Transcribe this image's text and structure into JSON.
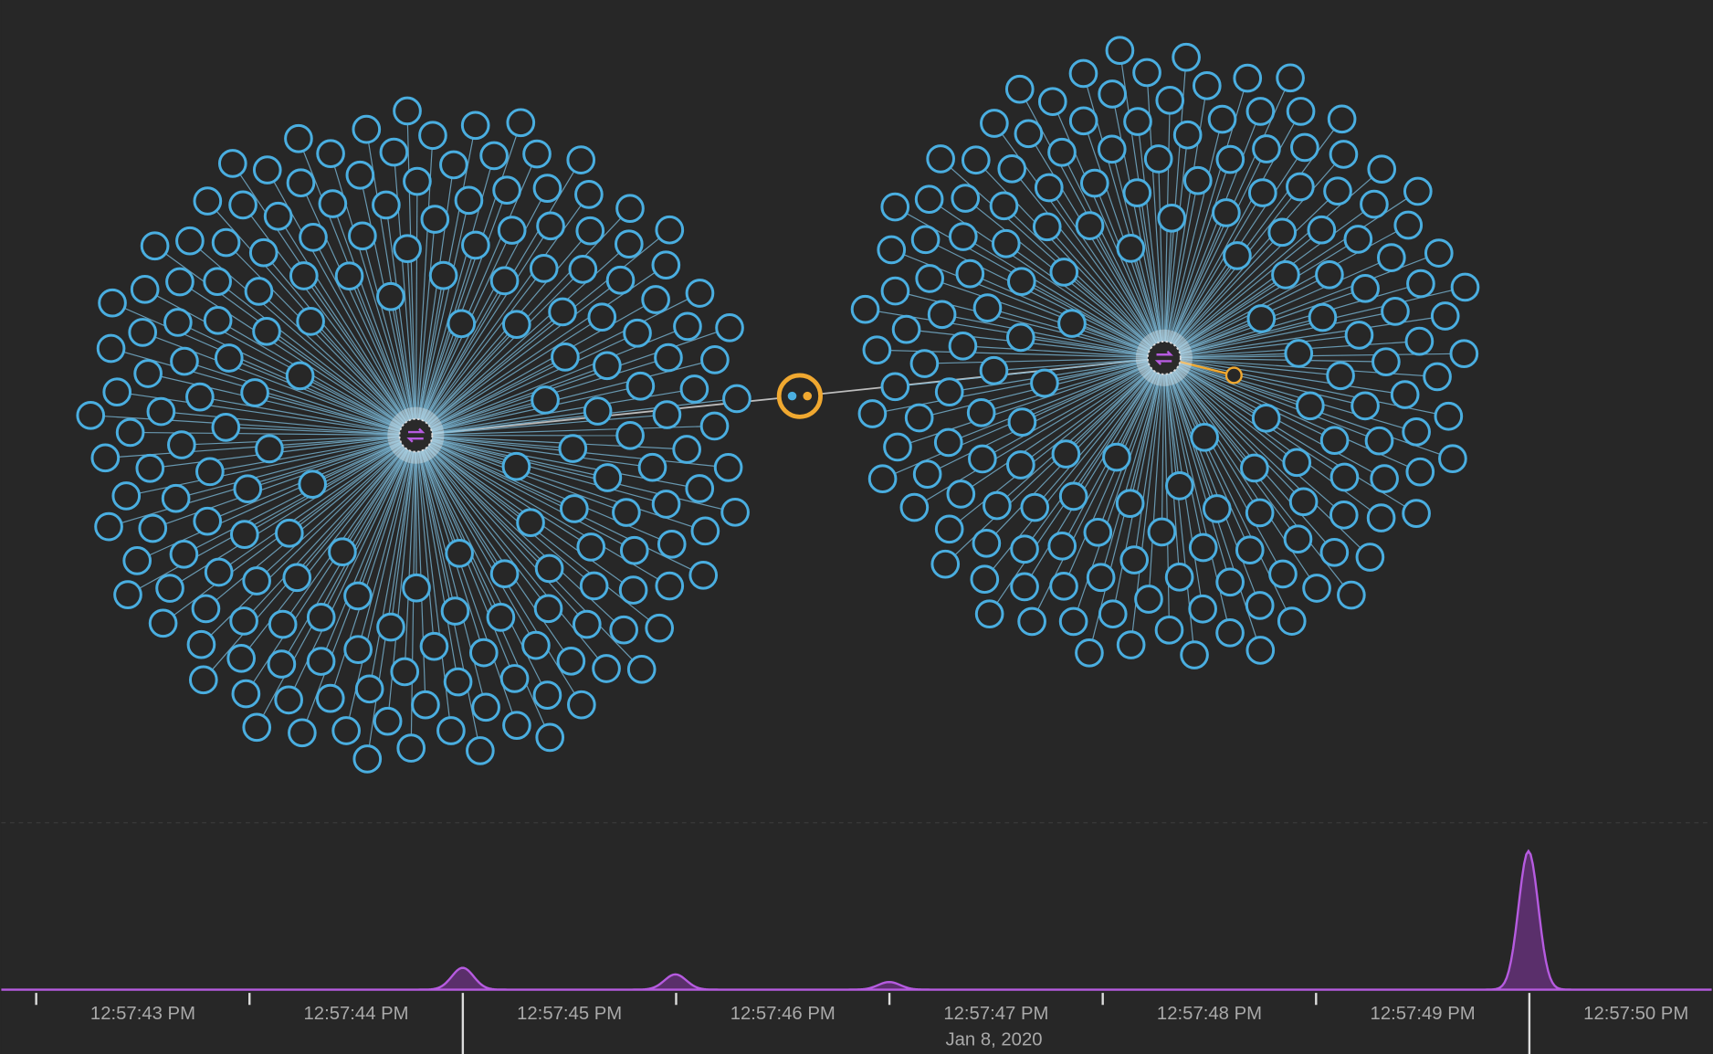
{
  "timeline": {
    "labels": [
      "12:57:43 PM",
      "12:57:44 PM",
      "12:57:45 PM",
      "12:57:46 PM",
      "12:57:47 PM",
      "12:57:48 PM",
      "12:57:49 PM",
      "12:57:50 PM"
    ],
    "date": "Jan 8, 2020"
  }
}
